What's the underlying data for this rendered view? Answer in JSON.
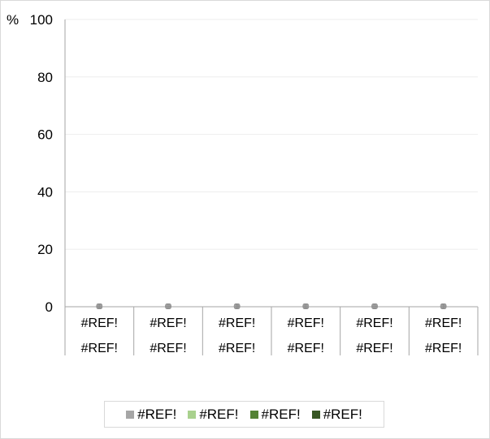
{
  "chart_data": {
    "type": "bar",
    "ylabel": "%",
    "ylim": [
      0,
      100
    ],
    "yticks": [
      0,
      20,
      40,
      60,
      80,
      100
    ],
    "categories": [
      [
        "#REF!",
        "#REF!"
      ],
      [
        "#REF!",
        "#REF!"
      ],
      [
        "#REF!",
        "#REF!"
      ],
      [
        "#REF!",
        "#REF!"
      ],
      [
        "#REF!",
        "#REF!"
      ],
      [
        "#REF!",
        "#REF!"
      ]
    ],
    "series": [
      {
        "name": "#REF!",
        "color": "#a6a6a6",
        "values": [
          0,
          0,
          0,
          0,
          0,
          0
        ]
      },
      {
        "name": "#REF!",
        "color": "#a9d18e",
        "values": [
          0,
          0,
          0,
          0,
          0,
          0
        ]
      },
      {
        "name": "#REF!",
        "color": "#548235",
        "values": [
          0,
          0,
          0,
          0,
          0,
          0
        ]
      },
      {
        "name": "#REF!",
        "color": "#375623",
        "values": [
          0,
          0,
          0,
          0,
          0,
          0
        ]
      }
    ],
    "grid": true,
    "legend_position": "bottom"
  }
}
